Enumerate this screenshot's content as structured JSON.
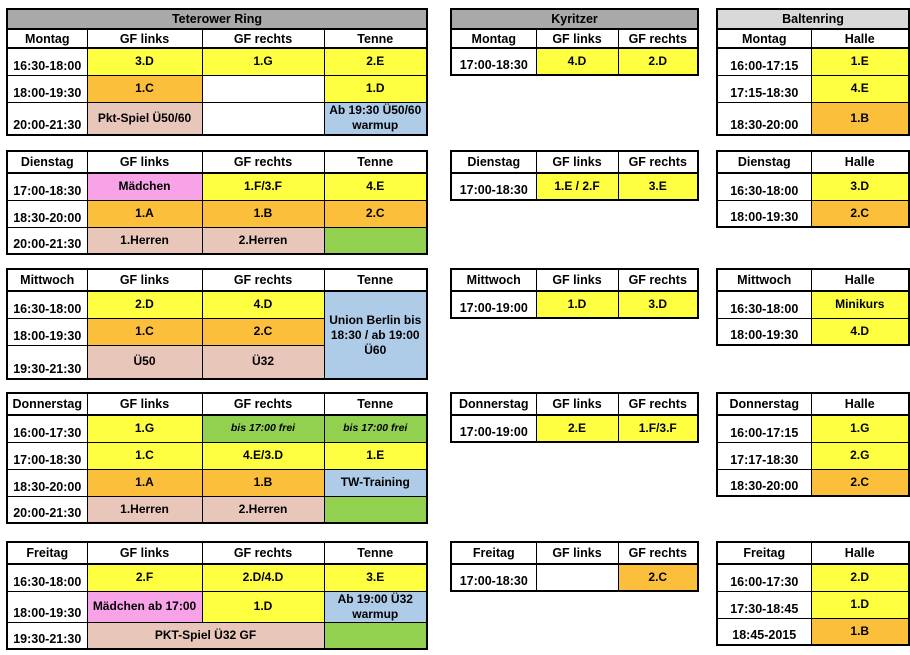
{
  "colors": {
    "yellow": "#FFFF42",
    "orange": "#FBBF3B",
    "rose": "#E8C6BA",
    "pink": "#F8A3E7",
    "green": "#92D050",
    "blue": "#AECBE8",
    "white": "#FFFFFF",
    "gray": "#A9A9A9",
    "light": "#D9D9D9"
  },
  "venues": [
    {
      "title": "Teterower Ring",
      "title_bg": "gray",
      "columns": [
        "GF links",
        "GF rechts",
        "Tenne"
      ],
      "blocks": [
        {
          "day": "Montag",
          "rows": [
            {
              "time": "16:30-18:00",
              "cells": [
                {
                  "t": "3.D",
                  "bg": "yellow"
                },
                {
                  "t": "1.G",
                  "bg": "yellow"
                },
                {
                  "t": "2.E",
                  "bg": "yellow"
                }
              ]
            },
            {
              "time": "18:00-19:30",
              "cells": [
                {
                  "t": "1.C",
                  "bg": "orange"
                },
                {
                  "t": "",
                  "bg": "white"
                },
                {
                  "t": "1.D",
                  "bg": "yellow"
                }
              ]
            },
            {
              "time": "20:00-21:30",
              "cells": [
                {
                  "t": "Pkt-Spiel Ü50/60",
                  "bg": "rose"
                },
                {
                  "t": "",
                  "bg": "white"
                },
                {
                  "t": "Ab 19:30 Ü50/60 warmup",
                  "bg": "blue"
                }
              ]
            }
          ]
        },
        {
          "day": "Dienstag",
          "rows": [
            {
              "time": "17:00-18:30",
              "cells": [
                {
                  "t": "Mädchen",
                  "bg": "pink"
                },
                {
                  "t": "1.F/3.F",
                  "bg": "yellow"
                },
                {
                  "t": "4.E",
                  "bg": "yellow"
                }
              ]
            },
            {
              "time": "18:30-20:00",
              "cells": [
                {
                  "t": "1.A",
                  "bg": "orange"
                },
                {
                  "t": "1.B",
                  "bg": "orange"
                },
                {
                  "t": "2.C",
                  "bg": "orange"
                }
              ]
            },
            {
              "time": "20:00-21:30",
              "cells": [
                {
                  "t": "1.Herren",
                  "bg": "rose"
                },
                {
                  "t": "2.Herren",
                  "bg": "rose"
                },
                {
                  "t": "",
                  "bg": "green"
                }
              ]
            }
          ]
        },
        {
          "day": "Mittwoch",
          "rows": [
            {
              "time": "16:30-18:00",
              "cells": [
                {
                  "t": "2.D",
                  "bg": "yellow"
                },
                {
                  "t": "4.D",
                  "bg": "yellow"
                },
                {
                  "t": "Union Berlin bis 18:30 / ab 19:00 Ü60",
                  "bg": "blue",
                  "rs": 3
                }
              ]
            },
            {
              "time": "18:00-19:30",
              "cells": [
                {
                  "t": "1.C",
                  "bg": "orange"
                },
                {
                  "t": "2.C",
                  "bg": "orange"
                }
              ]
            },
            {
              "time": "19:30-21:30",
              "cells": [
                {
                  "t": "Ü50",
                  "bg": "rose"
                },
                {
                  "t": "Ü32",
                  "bg": "rose"
                }
              ]
            }
          ]
        },
        {
          "day": "Donnerstag",
          "rows": [
            {
              "time": "16:00-17:30",
              "cells": [
                {
                  "t": "1.G",
                  "bg": "yellow"
                },
                {
                  "t": "bis 17:00 frei",
                  "bg": "green",
                  "it": true
                },
                {
                  "t": "bis 17:00 frei",
                  "bg": "green",
                  "it": true
                }
              ]
            },
            {
              "time": "17:00-18:30",
              "cells": [
                {
                  "t": "1.C",
                  "bg": "yellow"
                },
                {
                  "t": "4.E/3.D",
                  "bg": "yellow"
                },
                {
                  "t": "1.E",
                  "bg": "yellow"
                }
              ]
            },
            {
              "time": "18:30-20:00",
              "cells": [
                {
                  "t": "1.A",
                  "bg": "orange"
                },
                {
                  "t": "1.B",
                  "bg": "orange"
                },
                {
                  "t": "TW-Training",
                  "bg": "blue"
                }
              ]
            },
            {
              "time": "20:00-21:30",
              "cells": [
                {
                  "t": "1.Herren",
                  "bg": "rose"
                },
                {
                  "t": "2.Herren",
                  "bg": "rose"
                },
                {
                  "t": "",
                  "bg": "green"
                }
              ]
            }
          ]
        },
        {
          "day": "Freitag",
          "rows": [
            {
              "time": "16:30-18:00",
              "cells": [
                {
                  "t": "2.F",
                  "bg": "yellow"
                },
                {
                  "t": "2.D/4.D",
                  "bg": "yellow"
                },
                {
                  "t": "3.E",
                  "bg": "yellow"
                }
              ]
            },
            {
              "time": "18:00-19:30",
              "cells": [
                {
                  "t": "Mädchen ab 17:00",
                  "bg": "pink"
                },
                {
                  "t": "1.D",
                  "bg": "yellow"
                },
                {
                  "t": "Ab 19:00 Ü32 warmup",
                  "bg": "blue"
                }
              ]
            },
            {
              "time": "19:30-21:30",
              "cells": [
                {
                  "t": "PKT-Spiel Ü32 GF",
                  "bg": "rose",
                  "cs": 2
                },
                {
                  "t": "",
                  "bg": "green"
                }
              ]
            }
          ]
        }
      ]
    },
    {
      "title": "Kyritzer",
      "title_bg": "gray",
      "columns": [
        "GF links",
        "GF rechts"
      ],
      "blocks": [
        {
          "day": "Montag",
          "rows": [
            {
              "time": "17:00-18:30",
              "cells": [
                {
                  "t": "4.D",
                  "bg": "yellow"
                },
                {
                  "t": "2.D",
                  "bg": "yellow"
                }
              ]
            }
          ]
        },
        {
          "day": "Dienstag",
          "rows": [
            {
              "time": "17:00-18:30",
              "cells": [
                {
                  "t": "1.E / 2.F",
                  "bg": "yellow"
                },
                {
                  "t": "3.E",
                  "bg": "yellow"
                }
              ]
            }
          ]
        },
        {
          "day": "Mittwoch",
          "rows": [
            {
              "time": "17:00-19:00",
              "cells": [
                {
                  "t": "1.D",
                  "bg": "yellow"
                },
                {
                  "t": "3.D",
                  "bg": "yellow"
                }
              ]
            }
          ]
        },
        {
          "day": "Donnerstag",
          "rows": [
            {
              "time": "17:00-19:00",
              "cells": [
                {
                  "t": "2.E",
                  "bg": "yellow"
                },
                {
                  "t": "1.F/3.F",
                  "bg": "yellow"
                }
              ]
            }
          ]
        },
        {
          "day": "Freitag",
          "rows": [
            {
              "time": "17:00-18:30",
              "cells": [
                {
                  "t": "",
                  "bg": "white"
                },
                {
                  "t": "2.C",
                  "bg": "orange"
                }
              ]
            }
          ]
        }
      ]
    },
    {
      "title": "Baltenring",
      "title_bg": "light",
      "columns": [
        "Halle"
      ],
      "blocks": [
        {
          "day": "Montag",
          "rows": [
            {
              "time": "16:00-17:15",
              "cells": [
                {
                  "t": "1.E",
                  "bg": "yellow"
                }
              ]
            },
            {
              "time": "17:15-18:30",
              "cells": [
                {
                  "t": "4.E",
                  "bg": "yellow"
                }
              ]
            },
            {
              "time": "18:30-20:00",
              "cells": [
                {
                  "t": "1.B",
                  "bg": "orange"
                }
              ]
            }
          ]
        },
        {
          "day": "Dienstag",
          "rows": [
            {
              "time": "16:30-18:00",
              "cells": [
                {
                  "t": "3.D",
                  "bg": "yellow"
                }
              ]
            },
            {
              "time": "18:00-19:30",
              "cells": [
                {
                  "t": "2.C",
                  "bg": "orange"
                }
              ]
            }
          ]
        },
        {
          "day": "Mittwoch",
          "rows": [
            {
              "time": "16:30-18:00",
              "cells": [
                {
                  "t": "Minikurs",
                  "bg": "yellow"
                }
              ]
            },
            {
              "time": "18:00-19:30",
              "cells": [
                {
                  "t": "4.D",
                  "bg": "yellow"
                }
              ]
            }
          ]
        },
        {
          "day": "Donnerstag",
          "rows": [
            {
              "time": "16:00-17:15",
              "cells": [
                {
                  "t": "1.G",
                  "bg": "yellow"
                }
              ]
            },
            {
              "time": "17:17-18:30",
              "cells": [
                {
                  "t": "2.G",
                  "bg": "yellow"
                }
              ]
            },
            {
              "time": "18:30-20:00",
              "cells": [
                {
                  "t": "2.C",
                  "bg": "orange"
                }
              ]
            }
          ]
        },
        {
          "day": "Freitag",
          "rows": [
            {
              "time": "16:00-17:30",
              "cells": [
                {
                  "t": "2.D",
                  "bg": "yellow"
                }
              ]
            },
            {
              "time": "17:30-18:45",
              "cells": [
                {
                  "t": "1.D",
                  "bg": "yellow"
                }
              ]
            },
            {
              "time": "18:45-2015",
              "cells": [
                {
                  "t": "1.B",
                  "bg": "orange"
                }
              ]
            }
          ]
        }
      ]
    }
  ]
}
